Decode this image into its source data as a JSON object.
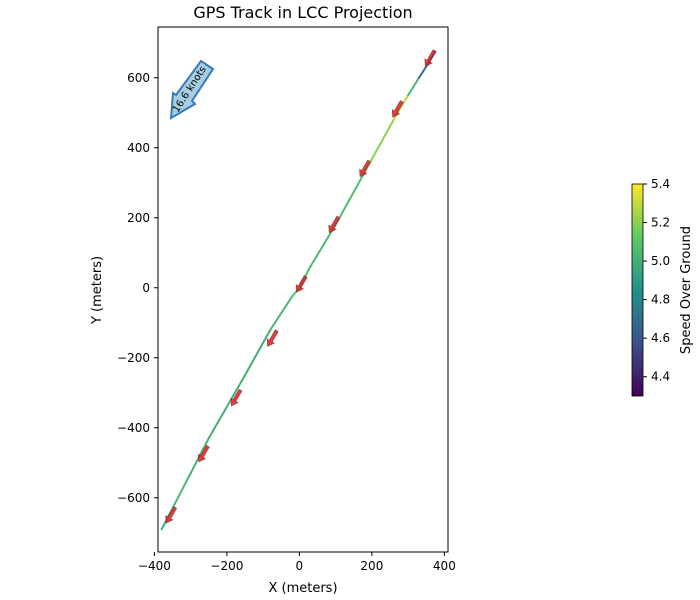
{
  "chart_data": {
    "type": "line",
    "title": "GPS Track in LCC Projection",
    "xlabel": "X (meters)",
    "ylabel": "Y (meters)",
    "xlim": [
      -390,
      410
    ],
    "ylim": [
      -755,
      745
    ],
    "x_ticks": [
      -400,
      -200,
      0,
      200,
      400
    ],
    "y_ticks": [
      -600,
      -400,
      -200,
      0,
      200,
      400,
      600
    ],
    "x_tick_labels": [
      "−400",
      "−200",
      "0",
      "200",
      "400"
    ],
    "y_tick_labels": [
      "−600",
      "−400",
      "−200",
      "0",
      "200",
      "400",
      "600"
    ],
    "grid": false,
    "track": {
      "x": [
        -380,
        -360,
        -300,
        -250,
        -150,
        -80,
        -20,
        0,
        30,
        100,
        180,
        260,
        300,
        330,
        355,
        375
      ],
      "y": [
        -690,
        -650,
        -530,
        -430,
        -250,
        -120,
        -25,
        0,
        60,
        180,
        330,
        480,
        550,
        600,
        640,
        675
      ],
      "speed": [
        4.95,
        5.05,
        5.05,
        5.0,
        5.0,
        5.0,
        5.05,
        5.1,
        5.05,
        5.05,
        5.1,
        5.3,
        5.25,
        4.8,
        4.6,
        4.5
      ]
    },
    "direction_arrows": [
      {
        "x": -355,
        "y": -650
      },
      {
        "x": -265,
        "y": -475
      },
      {
        "x": -175,
        "y": -315
      },
      {
        "x": -75,
        "y": -145
      },
      {
        "x": 5,
        "y": 10
      },
      {
        "x": 95,
        "y": 180
      },
      {
        "x": 180,
        "y": 340
      },
      {
        "x": 270,
        "y": 510
      },
      {
        "x": 360,
        "y": 655
      }
    ],
    "wind_annotation": {
      "label": "16.6 knots",
      "direction": "toward lower-left",
      "fill": "#a6cee3",
      "edge": "#3a7ab8"
    },
    "colorbar": {
      "label": "Speed Over Ground",
      "min": 4.3,
      "max": 5.4,
      "ticks": [
        4.4,
        4.6,
        4.8,
        5.0,
        5.2,
        5.4
      ],
      "tick_labels": [
        "4.4",
        "4.6",
        "4.8",
        "5.0",
        "5.2",
        "5.4"
      ],
      "colormap": "viridis"
    },
    "colors": {
      "arrow_fill": "#e41a1c",
      "arrow_edge": "#7f2a2a"
    }
  }
}
